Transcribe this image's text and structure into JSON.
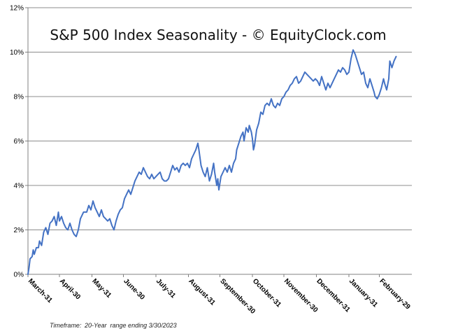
{
  "chart_data": {
    "type": "line",
    "title": "S&P 500 Index Seasonality - © EquityClock.com",
    "xlabel": "",
    "ylabel": "",
    "ylim": [
      0,
      12
    ],
    "yticks": [
      0,
      2,
      4,
      6,
      8,
      10,
      12
    ],
    "ytick_labels": [
      "0%",
      "2%",
      "4%",
      "6%",
      "8%",
      "10%",
      "12%"
    ],
    "grid": true,
    "line_color": "#4472C4",
    "x_range_days": [
      0,
      366
    ],
    "xticks": [
      {
        "label": "March-31",
        "day": 0
      },
      {
        "label": "April-30",
        "day": 30
      },
      {
        "label": "May-31",
        "day": 61
      },
      {
        "label": "June-30",
        "day": 91
      },
      {
        "label": "July-31",
        "day": 122
      },
      {
        "label": "August-31",
        "day": 153
      },
      {
        "label": "September-30",
        "day": 183
      },
      {
        "label": "October-31",
        "day": 214
      },
      {
        "label": "November-30",
        "day": 244
      },
      {
        "label": "December-31",
        "day": 275
      },
      {
        "label": "January-31",
        "day": 306
      },
      {
        "label": "February-29",
        "day": 335
      }
    ],
    "series": [
      {
        "name": "S&P 500 Seasonality",
        "points": [
          [
            0,
            0.0
          ],
          [
            1,
            0.3
          ],
          [
            2,
            0.7
          ],
          [
            4,
            0.8
          ],
          [
            5,
            1.1
          ],
          [
            6,
            0.9
          ],
          [
            8,
            1.2
          ],
          [
            10,
            1.2
          ],
          [
            11,
            1.5
          ],
          [
            13,
            1.3
          ],
          [
            15,
            1.9
          ],
          [
            17,
            2.1
          ],
          [
            19,
            1.8
          ],
          [
            21,
            2.3
          ],
          [
            23,
            2.4
          ],
          [
            25,
            2.6
          ],
          [
            27,
            2.2
          ],
          [
            29,
            2.8
          ],
          [
            30,
            2.4
          ],
          [
            32,
            2.6
          ],
          [
            34,
            2.3
          ],
          [
            36,
            2.1
          ],
          [
            38,
            2.0
          ],
          [
            40,
            2.3
          ],
          [
            42,
            2.0
          ],
          [
            44,
            1.8
          ],
          [
            46,
            1.7
          ],
          [
            48,
            2.0
          ],
          [
            50,
            2.5
          ],
          [
            53,
            2.8
          ],
          [
            56,
            2.8
          ],
          [
            58,
            3.1
          ],
          [
            60,
            2.9
          ],
          [
            62,
            3.3
          ],
          [
            64,
            3.0
          ],
          [
            66,
            2.8
          ],
          [
            68,
            2.6
          ],
          [
            70,
            2.9
          ],
          [
            72,
            2.6
          ],
          [
            74,
            2.5
          ],
          [
            76,
            2.4
          ],
          [
            78,
            2.5
          ],
          [
            80,
            2.2
          ],
          [
            82,
            2.0
          ],
          [
            84,
            2.4
          ],
          [
            86,
            2.7
          ],
          [
            88,
            2.9
          ],
          [
            90,
            3.0
          ],
          [
            92,
            3.4
          ],
          [
            94,
            3.6
          ],
          [
            96,
            3.8
          ],
          [
            98,
            3.6
          ],
          [
            100,
            3.9
          ],
          [
            102,
            4.2
          ],
          [
            104,
            4.4
          ],
          [
            106,
            4.6
          ],
          [
            108,
            4.5
          ],
          [
            110,
            4.8
          ],
          [
            112,
            4.6
          ],
          [
            114,
            4.4
          ],
          [
            116,
            4.3
          ],
          [
            118,
            4.5
          ],
          [
            120,
            4.3
          ],
          [
            122,
            4.4
          ],
          [
            124,
            4.5
          ],
          [
            126,
            4.6
          ],
          [
            128,
            4.3
          ],
          [
            130,
            4.2
          ],
          [
            132,
            4.2
          ],
          [
            134,
            4.3
          ],
          [
            136,
            4.6
          ],
          [
            138,
            4.9
          ],
          [
            140,
            4.7
          ],
          [
            142,
            4.8
          ],
          [
            144,
            4.6
          ],
          [
            146,
            4.9
          ],
          [
            148,
            5.0
          ],
          [
            150,
            4.9
          ],
          [
            152,
            5.0
          ],
          [
            154,
            4.8
          ],
          [
            156,
            5.2
          ],
          [
            158,
            5.4
          ],
          [
            160,
            5.6
          ],
          [
            162,
            5.9
          ],
          [
            163,
            5.6
          ],
          [
            165,
            4.9
          ],
          [
            167,
            4.6
          ],
          [
            169,
            4.4
          ],
          [
            171,
            4.8
          ],
          [
            173,
            4.2
          ],
          [
            175,
            4.5
          ],
          [
            177,
            5.0
          ],
          [
            178,
            4.6
          ],
          [
            180,
            4.0
          ],
          [
            181,
            4.3
          ],
          [
            182,
            3.8
          ],
          [
            184,
            4.4
          ],
          [
            186,
            4.6
          ],
          [
            188,
            4.8
          ],
          [
            190,
            4.6
          ],
          [
            192,
            4.9
          ],
          [
            194,
            4.6
          ],
          [
            196,
            5.0
          ],
          [
            198,
            5.2
          ],
          [
            199,
            5.6
          ],
          [
            201,
            5.9
          ],
          [
            203,
            6.2
          ],
          [
            205,
            6.4
          ],
          [
            206,
            6.0
          ],
          [
            208,
            6.6
          ],
          [
            210,
            6.4
          ],
          [
            211,
            6.7
          ],
          [
            213,
            6.4
          ],
          [
            214,
            6.1
          ],
          [
            215,
            5.6
          ],
          [
            216,
            5.8
          ],
          [
            218,
            6.5
          ],
          [
            220,
            6.8
          ],
          [
            222,
            7.3
          ],
          [
            224,
            7.2
          ],
          [
            226,
            7.6
          ],
          [
            228,
            7.7
          ],
          [
            230,
            7.6
          ],
          [
            232,
            7.9
          ],
          [
            234,
            7.6
          ],
          [
            236,
            7.5
          ],
          [
            238,
            7.7
          ],
          [
            240,
            7.6
          ],
          [
            242,
            7.9
          ],
          [
            244,
            8.0
          ],
          [
            246,
            8.2
          ],
          [
            248,
            8.3
          ],
          [
            250,
            8.5
          ],
          [
            252,
            8.6
          ],
          [
            254,
            8.8
          ],
          [
            256,
            8.9
          ],
          [
            258,
            8.6
          ],
          [
            260,
            8.7
          ],
          [
            262,
            8.9
          ],
          [
            264,
            9.1
          ],
          [
            266,
            9.0
          ],
          [
            268,
            8.9
          ],
          [
            270,
            8.8
          ],
          [
            272,
            8.7
          ],
          [
            274,
            8.8
          ],
          [
            276,
            8.7
          ],
          [
            278,
            8.5
          ],
          [
            280,
            8.9
          ],
          [
            282,
            8.6
          ],
          [
            284,
            8.3
          ],
          [
            286,
            8.6
          ],
          [
            288,
            8.4
          ],
          [
            290,
            8.6
          ],
          [
            292,
            8.8
          ],
          [
            294,
            9.0
          ],
          [
            296,
            9.2
          ],
          [
            298,
            9.1
          ],
          [
            300,
            9.3
          ],
          [
            302,
            9.2
          ],
          [
            304,
            9.0
          ],
          [
            306,
            9.1
          ],
          [
            308,
            9.7
          ],
          [
            310,
            10.1
          ],
          [
            312,
            9.9
          ],
          [
            314,
            9.6
          ],
          [
            316,
            9.3
          ],
          [
            318,
            9.0
          ],
          [
            320,
            9.1
          ],
          [
            322,
            8.6
          ],
          [
            324,
            8.4
          ],
          [
            326,
            8.8
          ],
          [
            328,
            8.5
          ],
          [
            330,
            8.2
          ],
          [
            331,
            8.0
          ],
          [
            333,
            7.9
          ],
          [
            335,
            8.1
          ],
          [
            337,
            8.4
          ],
          [
            339,
            8.8
          ],
          [
            340,
            8.6
          ],
          [
            342,
            8.3
          ],
          [
            344,
            8.8
          ],
          [
            345,
            9.6
          ],
          [
            347,
            9.3
          ],
          [
            349,
            9.6
          ],
          [
            351,
            9.8
          ]
        ]
      }
    ]
  },
  "footnote": {
    "label": "Timeframe:",
    "text": "20-Year  range ending 3/30/2023"
  }
}
